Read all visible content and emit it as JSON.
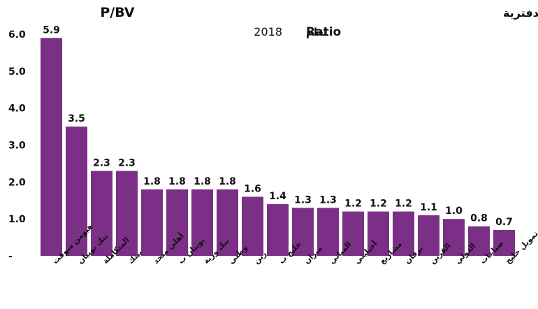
{
  "chart_data": {
    "type": "bar",
    "title": "ترتيب شركات السوق الاول من حيث مضاعف السعر الى القيمة الدفترية",
    "title_latin": "P/BV",
    "subtitle_arabic": "لعام",
    "subtitle_latin": "Ratio",
    "subtitle_year": "2018",
    "xlabel": "",
    "ylabel": "",
    "ylim": [
      0,
      6.0
    ],
    "ytick_labels": [
      "6.0",
      "5.0",
      "4.0",
      "3.0",
      "2.0",
      "1.0",
      "-"
    ],
    "ytick_values": [
      6,
      5,
      4,
      3,
      2,
      1,
      0
    ],
    "categories": [
      "هيومن سوفت",
      "بنك بوبيان",
      "المتكاملة",
      "بيتك",
      "أهلي متحد",
      "بوبيان ب",
      "بنك وربة",
      "وطني",
      "زين",
      "خليج ب",
      "ميزان",
      "المباني",
      "أجيليتي",
      "مشاريع",
      "برقان",
      "القرين",
      "الدولي",
      "صناعات",
      "تمويل خليج"
    ],
    "values": [
      5.9,
      3.5,
      2.3,
      2.3,
      1.8,
      1.8,
      1.8,
      1.8,
      1.6,
      1.4,
      1.3,
      1.3,
      1.2,
      1.2,
      1.2,
      1.1,
      1.0,
      0.8,
      0.7
    ],
    "data_labels": [
      "5.9",
      "3.5",
      "2.3",
      "2.3",
      "1.8",
      "1.8",
      "1.8",
      "1.8",
      "1.6",
      "1.4",
      "1.3",
      "1.3",
      "1.2",
      "1.2",
      "1.2",
      "1.1",
      "1.0",
      "0.8",
      "0.7"
    ],
    "bar_color": "#7b2f86",
    "grid": false,
    "legend": "none"
  }
}
